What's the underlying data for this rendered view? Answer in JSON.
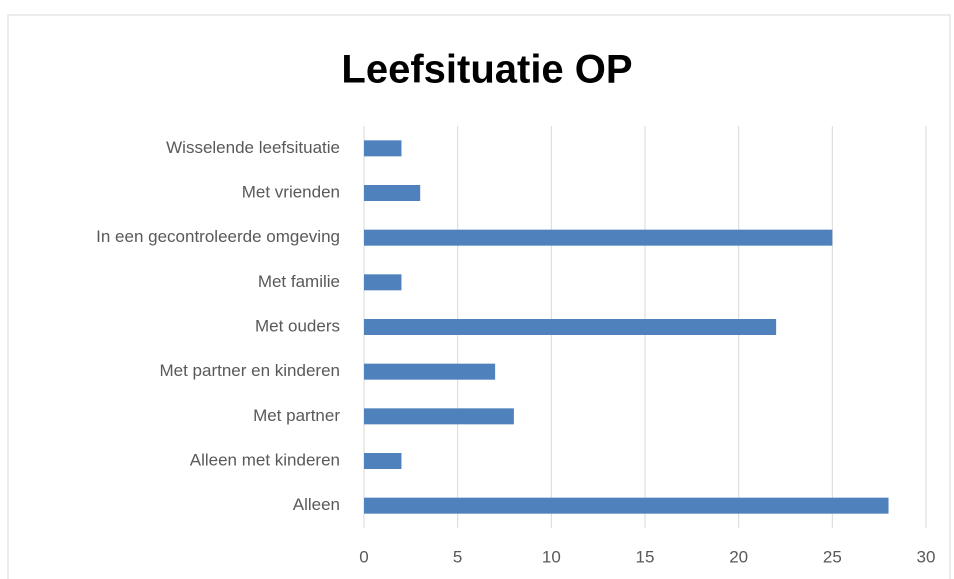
{
  "chart_data": {
    "type": "bar",
    "orientation": "horizontal",
    "title": "Leefsituatie OP",
    "categories": [
      "Wisselende leefsituatie",
      "Met vrienden",
      "In een gecontroleerde omgeving",
      "Met familie",
      "Met ouders",
      "Met partner en kinderen",
      "Met partner",
      "Alleen met kinderen",
      "Alleen"
    ],
    "values": [
      2,
      3,
      25,
      2,
      22,
      7,
      8,
      2,
      28
    ],
    "color": "#4f81bd",
    "xlim": [
      0,
      30
    ],
    "xticks": [
      0,
      5,
      10,
      15,
      20,
      25,
      30
    ],
    "grid": true
  }
}
